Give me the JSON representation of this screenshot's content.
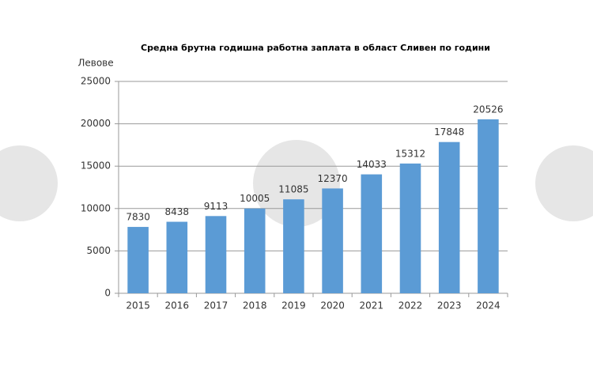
{
  "chart_data": {
    "type": "bar",
    "title": "Средна брутна годишна работна заплата в област Сливен по години",
    "y_label": "Левове",
    "categories": [
      "2015",
      "2016",
      "2017",
      "2018",
      "2019",
      "2020",
      "2021",
      "2022",
      "2023",
      "2024"
    ],
    "values": [
      7830,
      8438,
      9113,
      10005,
      11085,
      12370,
      14033,
      15312,
      17848,
      20526
    ],
    "color": "#5b9bd5",
    "ylim": [
      0,
      25000
    ],
    "yticks": [
      0,
      5000,
      10000,
      15000,
      20000,
      25000
    ],
    "grid": true
  }
}
